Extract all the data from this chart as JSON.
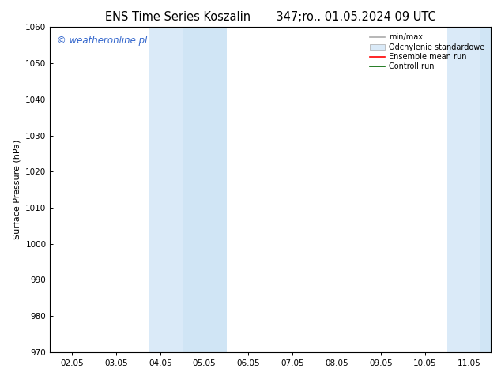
{
  "title_left": "ENS Time Series Koszalin",
  "title_right": "347;ro.. 01.05.2024 09 UTC",
  "ylabel": "Surface Pressure (hPa)",
  "ylim": [
    970,
    1060
  ],
  "yticks": [
    970,
    980,
    990,
    1000,
    1010,
    1020,
    1030,
    1040,
    1050,
    1060
  ],
  "xtick_labels": [
    "02.05",
    "03.05",
    "04.05",
    "05.05",
    "06.05",
    "07.05",
    "08.05",
    "09.05",
    "10.05",
    "11.05"
  ],
  "n_xticks": 10,
  "xlim": [
    0,
    9
  ],
  "shaded_bands": [
    {
      "xmin": 1.75,
      "xmax": 2.5,
      "color": "#daeaf8"
    },
    {
      "xmin": 2.5,
      "xmax": 3.5,
      "color": "#d0e5f5"
    },
    {
      "xmin": 8.5,
      "xmax": 9.25,
      "color": "#daeaf8"
    },
    {
      "xmin": 9.25,
      "xmax": 9.5,
      "color": "#d0e5f5"
    }
  ],
  "watermark": "© weatheronline.pl",
  "watermark_color": "#3366cc",
  "watermark_fontsize": 8.5,
  "legend_labels": [
    "min/max",
    "Odchylenie standardowe",
    "Ensemble mean run",
    "Controll run"
  ],
  "legend_line_color_1": "#aaaaaa",
  "legend_patch_color": "#daeaf8",
  "legend_line_color_3": "#ff0000",
  "legend_line_color_4": "#006600",
  "background_color": "#ffffff",
  "title_fontsize": 10.5,
  "ylabel_fontsize": 8,
  "tick_fontsize": 7.5
}
